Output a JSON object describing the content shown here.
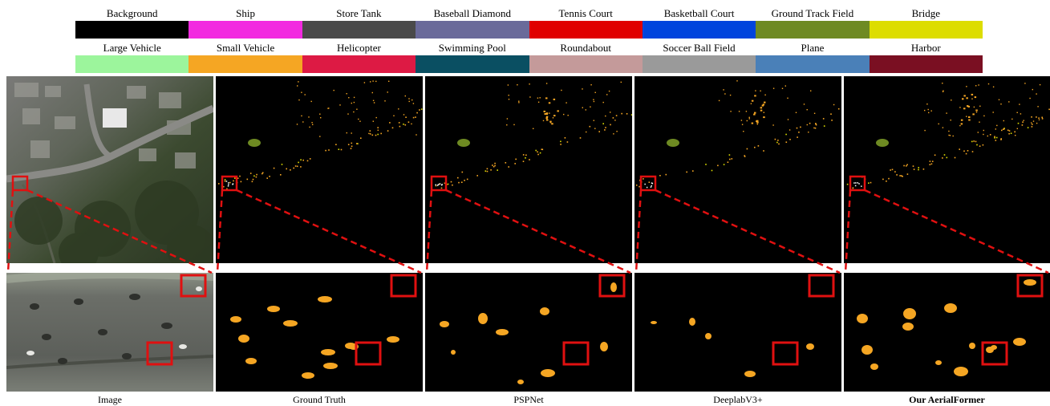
{
  "legend": {
    "row1": [
      {
        "label": "Background",
        "color": "#000000"
      },
      {
        "label": "Ship",
        "color": "#f22ae0"
      },
      {
        "label": "Store Tank",
        "color": "#4a4a4a"
      },
      {
        "label": "Baseball Diamond",
        "color": "#6a6a9a"
      },
      {
        "label": "Tennis Court",
        "color": "#e00000"
      },
      {
        "label": "Basketball Court",
        "color": "#0044dd"
      },
      {
        "label": "Ground Track Field",
        "color": "#6e8a22"
      },
      {
        "label": "Bridge",
        "color": "#dddd00"
      }
    ],
    "row2": [
      {
        "label": "Large Vehicle",
        "color": "#9cf59c"
      },
      {
        "label": "Small Vehicle",
        "color": "#f5a623"
      },
      {
        "label": "Helicopter",
        "color": "#dd1a44"
      },
      {
        "label": "Swimming Pool",
        "color": "#0a4f62"
      },
      {
        "label": "Roundabout",
        "color": "#c49a9a"
      },
      {
        "label": "Soccer Ball Field",
        "color": "#9a9a9a"
      },
      {
        "label": "Plane",
        "color": "#4a80b8"
      },
      {
        "label": "Harbor",
        "color": "#7a0f22"
      }
    ]
  },
  "captions": {
    "image": "Image",
    "ground_truth": "Ground Truth",
    "pspnet": "PSPNet",
    "deeplab": "DeeplabV3+",
    "ours": "Our AerialFormer"
  },
  "colors": {
    "highlight_box": "#e01010",
    "vehicle": "#f5a623",
    "field": "#6e8a22",
    "zoom_line": "#e01010"
  }
}
